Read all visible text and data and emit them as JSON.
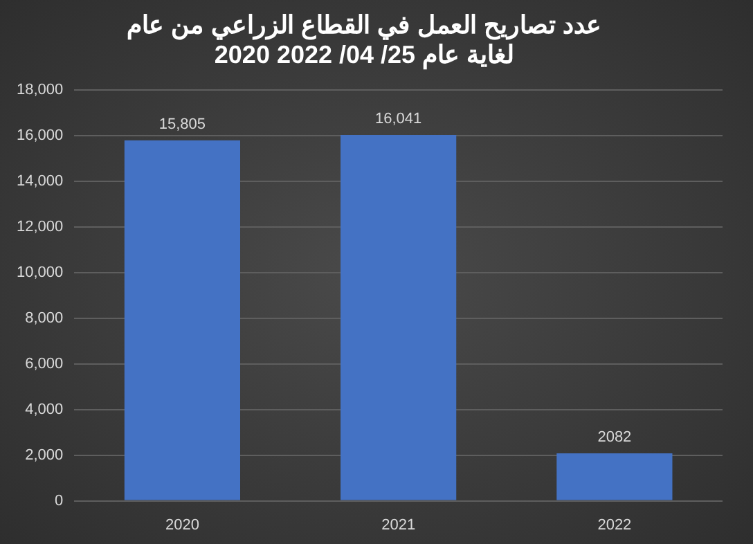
{
  "chart_data": {
    "type": "bar",
    "title": "عدد تصاريح العمل في القطاع الزراعي من عام\n2020 لغاية عام 25/ 04/ 2022",
    "categories": [
      "2020",
      "2021",
      "2022"
    ],
    "values": [
      15805,
      16041,
      2082
    ],
    "value_labels": [
      "15,805",
      "16,041",
      "2082"
    ],
    "color": "#4472c4",
    "ylim": [
      0,
      18000
    ],
    "yticks": [
      0,
      {
        "value": 2000,
        "label": "2,000"
      },
      {
        "value": 4000,
        "label": "4,000"
      },
      {
        "value": 6000,
        "label": "6,000"
      },
      {
        "value": 8000,
        "label": "8,000"
      },
      {
        "value": 10000,
        "label": "10,000"
      },
      {
        "value": 12000,
        "label": "12,000"
      },
      {
        "value": 14000,
        "label": "14,000"
      },
      {
        "value": 16000,
        "label": "16,000"
      },
      {
        "value": 18000,
        "label": "18,000"
      }
    ],
    "grid": "y",
    "legend": false
  }
}
